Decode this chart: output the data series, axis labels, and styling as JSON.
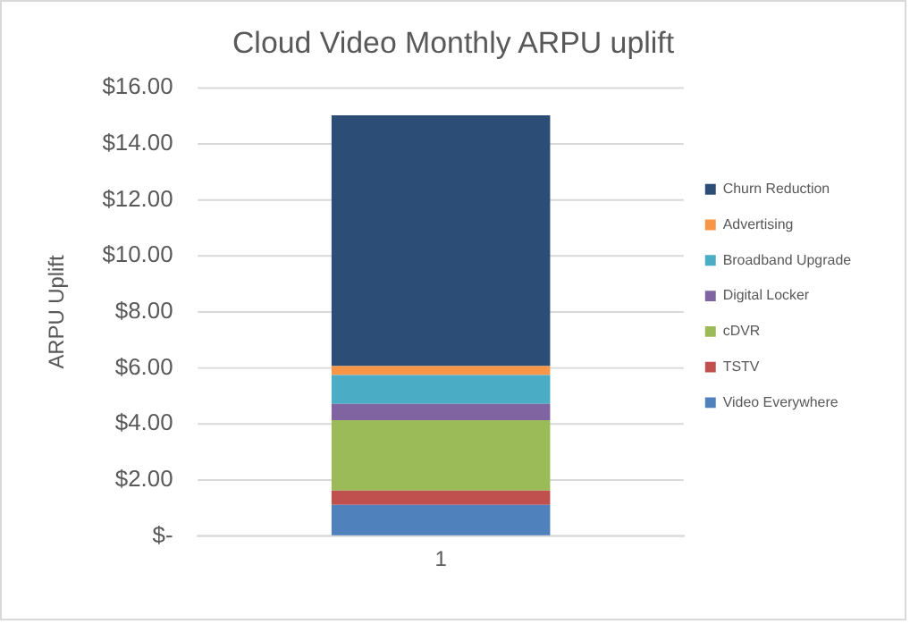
{
  "chart_data": {
    "type": "bar",
    "title": "Cloud Video Monthly ARPU uplift",
    "ylabel": "ARPU Uplift",
    "categories": [
      "1"
    ],
    "stacked": true,
    "series": [
      {
        "name": "Video Everywhere",
        "color": "#4f81bd",
        "values": [
          1.12
        ]
      },
      {
        "name": "TSTV",
        "color": "#c0504d",
        "values": [
          0.51
        ]
      },
      {
        "name": "cDVR",
        "color": "#9bbb59",
        "values": [
          2.51
        ]
      },
      {
        "name": "Digital Locker",
        "color": "#8064a2",
        "values": [
          0.58
        ]
      },
      {
        "name": "Broadband Upgrade",
        "color": "#4bacc6",
        "values": [
          1.03
        ]
      },
      {
        "name": "Advertising",
        "color": "#f79646",
        "values": [
          0.32
        ]
      },
      {
        "name": "Churn Reduction",
        "color": "#2c4d75",
        "values": [
          8.95
        ]
      }
    ],
    "ylim": [
      0,
      16
    ],
    "yticks": [
      {
        "value": 0,
        "label": "$-"
      },
      {
        "value": 2,
        "label": "$2.00"
      },
      {
        "value": 4,
        "label": "$4.00"
      },
      {
        "value": 6,
        "label": "$6.00"
      },
      {
        "value": 8,
        "label": "$8.00"
      },
      {
        "value": 10,
        "label": "$10.00"
      },
      {
        "value": 12,
        "label": "$12.00"
      },
      {
        "value": 14,
        "label": "$14.00"
      },
      {
        "value": 16,
        "label": "$16.00"
      }
    ],
    "grid": "y",
    "legend": "right"
  }
}
